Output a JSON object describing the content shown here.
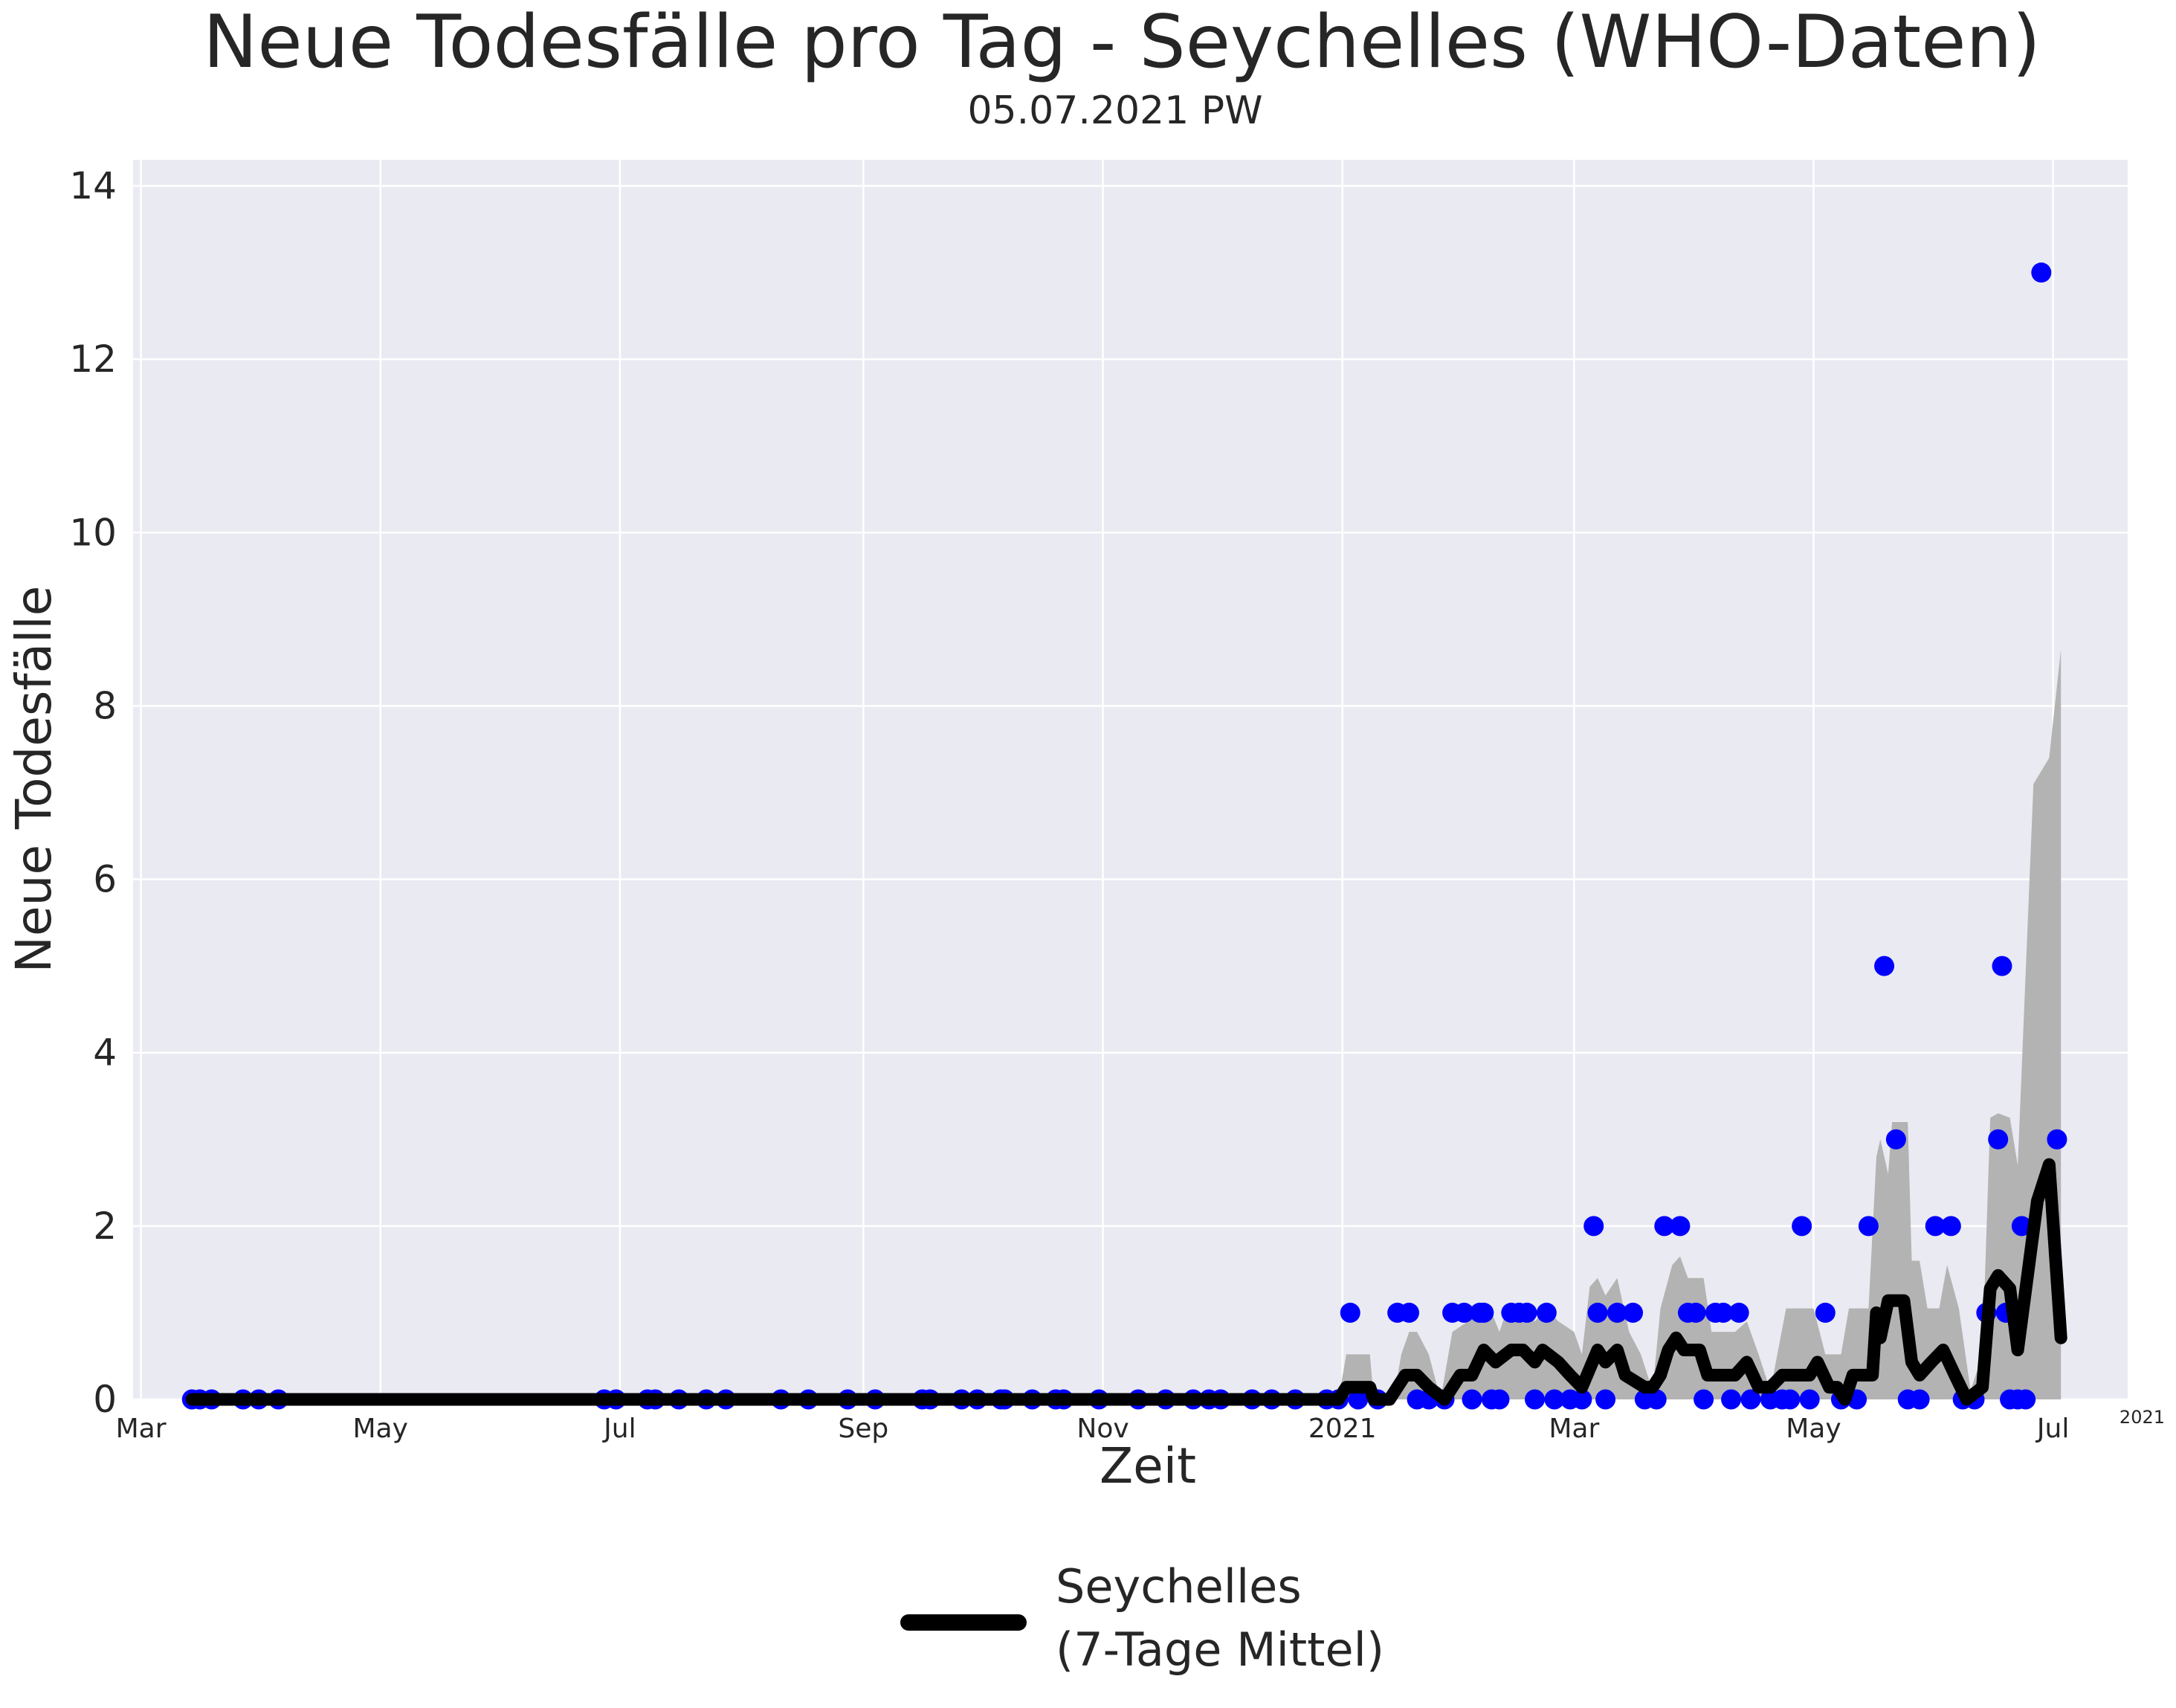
{
  "chart_data": {
    "type": "line",
    "title": "Neue Todesfälle pro Tag - Seychelles (WHO-Daten)",
    "subtitle": "05.07.2021 PW",
    "xlabel": "Zeit",
    "ylabel": "Neue Todesfälle",
    "ylim": [
      0,
      14.3
    ],
    "xlim": [
      "2020-02-28",
      "2021-07-20"
    ],
    "y_ticks": [
      0,
      2,
      4,
      6,
      8,
      10,
      12,
      14
    ],
    "x_ticks": [
      {
        "date": "2020-03-01",
        "label": "Mar"
      },
      {
        "date": "2020-05-01",
        "label": "May"
      },
      {
        "date": "2020-07-01",
        "label": "Jul"
      },
      {
        "date": "2020-09-01",
        "label": "Sep"
      },
      {
        "date": "2020-11-01",
        "label": "Nov"
      },
      {
        "date": "2021-01-01",
        "label": "2021"
      },
      {
        "date": "2021-03-01",
        "label": "Mar"
      },
      {
        "date": "2021-05-01",
        "label": "May"
      },
      {
        "date": "2021-07-01",
        "label": "Jul"
      }
    ],
    "x_offset_label": "2021",
    "grid": true,
    "legend_position": "bottom-center",
    "colors": {
      "background": "#eaeaf2",
      "grid": "#ffffff",
      "points": "#0000ff",
      "line": "#000000",
      "band": "#b3b3b3"
    },
    "series": [
      {
        "name": "Seychelles (7-Tage Mittel)",
        "legend_line1": "Seychelles",
        "legend_line2": "(7-Tage Mittel)",
        "role": "line",
        "points": [
          [
            "2020-03-14",
            0
          ],
          [
            "2020-12-31",
            0
          ],
          [
            "2021-01-02",
            0.14
          ],
          [
            "2021-01-08",
            0.14
          ],
          [
            "2021-01-09",
            0
          ],
          [
            "2021-01-13",
            0
          ],
          [
            "2021-01-15",
            0.14
          ],
          [
            "2021-01-17",
            0.28
          ],
          [
            "2021-01-20",
            0.28
          ],
          [
            "2021-01-23",
            0.14
          ],
          [
            "2021-01-27",
            0
          ],
          [
            "2021-01-31",
            0.28
          ],
          [
            "2021-02-03",
            0.28
          ],
          [
            "2021-02-06",
            0.57
          ],
          [
            "2021-02-09",
            0.43
          ],
          [
            "2021-02-13",
            0.57
          ],
          [
            "2021-02-16",
            0.57
          ],
          [
            "2021-02-19",
            0.43
          ],
          [
            "2021-02-21",
            0.57
          ],
          [
            "2021-02-25",
            0.43
          ],
          [
            "2021-02-28",
            0.28
          ],
          [
            "2021-03-03",
            0.14
          ],
          [
            "2021-03-07",
            0.57
          ],
          [
            "2021-03-09",
            0.43
          ],
          [
            "2021-03-12",
            0.57
          ],
          [
            "2021-03-14",
            0.28
          ],
          [
            "2021-03-19",
            0.14
          ],
          [
            "2021-03-21",
            0.14
          ],
          [
            "2021-03-23",
            0.28
          ],
          [
            "2021-03-25",
            0.57
          ],
          [
            "2021-03-27",
            0.71
          ],
          [
            "2021-03-29",
            0.57
          ],
          [
            "2021-04-02",
            0.57
          ],
          [
            "2021-04-04",
            0.28
          ],
          [
            "2021-04-11",
            0.28
          ],
          [
            "2021-04-14",
            0.43
          ],
          [
            "2021-04-17",
            0.14
          ],
          [
            "2021-04-20",
            0.14
          ],
          [
            "2021-04-23",
            0.28
          ],
          [
            "2021-04-30",
            0.28
          ],
          [
            "2021-05-02",
            0.43
          ],
          [
            "2021-05-05",
            0.14
          ],
          [
            "2021-05-07",
            0.14
          ],
          [
            "2021-05-09",
            0
          ],
          [
            "2021-05-11",
            0.28
          ],
          [
            "2021-05-16",
            0.28
          ],
          [
            "2021-05-17",
            1.0
          ],
          [
            "2021-05-18",
            0.71
          ],
          [
            "2021-05-20",
            1.14
          ],
          [
            "2021-05-24",
            1.14
          ],
          [
            "2021-05-26",
            0.43
          ],
          [
            "2021-05-28",
            0.28
          ],
          [
            "2021-05-31",
            0.43
          ],
          [
            "2021-06-03",
            0.57
          ],
          [
            "2021-06-06",
            0.28
          ],
          [
            "2021-06-09",
            0
          ],
          [
            "2021-06-13",
            0.14
          ],
          [
            "2021-06-15",
            1.28
          ],
          [
            "2021-06-17",
            1.43
          ],
          [
            "2021-06-20",
            1.28
          ],
          [
            "2021-06-22",
            0.57
          ],
          [
            "2021-06-27",
            2.29
          ],
          [
            "2021-06-30",
            2.71
          ],
          [
            "2021-07-03",
            0.71
          ]
        ]
      },
      {
        "name": "Neue Todesfälle",
        "role": "scatter",
        "points": [
          [
            "2020-03-14",
            0
          ],
          [
            "2020-03-16",
            0
          ],
          [
            "2020-03-19",
            0
          ],
          [
            "2020-03-27",
            0
          ],
          [
            "2020-03-31",
            0
          ],
          [
            "2020-04-05",
            0
          ],
          [
            "2020-06-27",
            0
          ],
          [
            "2020-06-30",
            0
          ],
          [
            "2020-07-08",
            0
          ],
          [
            "2020-07-10",
            0
          ],
          [
            "2020-07-16",
            0
          ],
          [
            "2020-07-23",
            0
          ],
          [
            "2020-07-28",
            0
          ],
          [
            "2020-08-11",
            0
          ],
          [
            "2020-08-18",
            0
          ],
          [
            "2020-08-28",
            0
          ],
          [
            "2020-09-04",
            0
          ],
          [
            "2020-09-16",
            0
          ],
          [
            "2020-09-18",
            0
          ],
          [
            "2020-09-26",
            0
          ],
          [
            "2020-09-30",
            0
          ],
          [
            "2020-10-06",
            0
          ],
          [
            "2020-10-07",
            0
          ],
          [
            "2020-10-14",
            0
          ],
          [
            "2020-10-20",
            0
          ],
          [
            "2020-10-22",
            0
          ],
          [
            "2020-10-31",
            0
          ],
          [
            "2020-11-10",
            0
          ],
          [
            "2020-11-17",
            0
          ],
          [
            "2020-11-24",
            0
          ],
          [
            "2020-11-28",
            0
          ],
          [
            "2020-12-01",
            0
          ],
          [
            "2020-12-09",
            0
          ],
          [
            "2020-12-14",
            0
          ],
          [
            "2020-12-20",
            0
          ],
          [
            "2020-12-28",
            0
          ],
          [
            "2020-12-31",
            0
          ],
          [
            "2021-01-03",
            1
          ],
          [
            "2021-01-05",
            0
          ],
          [
            "2021-01-10",
            0
          ],
          [
            "2021-01-15",
            1
          ],
          [
            "2021-01-18",
            1
          ],
          [
            "2021-01-20",
            0
          ],
          [
            "2021-01-23",
            0
          ],
          [
            "2021-01-27",
            0
          ],
          [
            "2021-01-29",
            1
          ],
          [
            "2021-02-01",
            1
          ],
          [
            "2021-02-03",
            0
          ],
          [
            "2021-02-05",
            1
          ],
          [
            "2021-02-06",
            1
          ],
          [
            "2021-02-08",
            0
          ],
          [
            "2021-02-10",
            0
          ],
          [
            "2021-02-13",
            1
          ],
          [
            "2021-02-15",
            1
          ],
          [
            "2021-02-17",
            1
          ],
          [
            "2021-02-19",
            0
          ],
          [
            "2021-02-22",
            1
          ],
          [
            "2021-02-24",
            0
          ],
          [
            "2021-02-28",
            0
          ],
          [
            "2021-03-03",
            0
          ],
          [
            "2021-03-06",
            2
          ],
          [
            "2021-03-07",
            1
          ],
          [
            "2021-03-09",
            0
          ],
          [
            "2021-03-12",
            1
          ],
          [
            "2021-03-16",
            1
          ],
          [
            "2021-03-19",
            0
          ],
          [
            "2021-03-22",
            0
          ],
          [
            "2021-03-24",
            2
          ],
          [
            "2021-03-28",
            2
          ],
          [
            "2021-03-30",
            1
          ],
          [
            "2021-04-01",
            1
          ],
          [
            "2021-04-03",
            0
          ],
          [
            "2021-04-06",
            1
          ],
          [
            "2021-04-08",
            1
          ],
          [
            "2021-04-10",
            0
          ],
          [
            "2021-04-12",
            1
          ],
          [
            "2021-04-15",
            0
          ],
          [
            "2021-04-20",
            0
          ],
          [
            "2021-04-23",
            0
          ],
          [
            "2021-04-25",
            0
          ],
          [
            "2021-04-28",
            2
          ],
          [
            "2021-04-30",
            0
          ],
          [
            "2021-05-04",
            1
          ],
          [
            "2021-05-08",
            0
          ],
          [
            "2021-05-12",
            0
          ],
          [
            "2021-05-15",
            2
          ],
          [
            "2021-05-19",
            5
          ],
          [
            "2021-05-22",
            3
          ],
          [
            "2021-05-25",
            0
          ],
          [
            "2021-05-28",
            0
          ],
          [
            "2021-06-01",
            2
          ],
          [
            "2021-06-05",
            2
          ],
          [
            "2021-06-08",
            0
          ],
          [
            "2021-06-11",
            0
          ],
          [
            "2021-06-14",
            1
          ],
          [
            "2021-06-17",
            3
          ],
          [
            "2021-06-18",
            5
          ],
          [
            "2021-06-19",
            1
          ],
          [
            "2021-06-20",
            0
          ],
          [
            "2021-06-22",
            0
          ],
          [
            "2021-06-23",
            2
          ],
          [
            "2021-06-24",
            0
          ],
          [
            "2021-06-28",
            13
          ],
          [
            "2021-07-02",
            3
          ]
        ]
      },
      {
        "name": "Unsicherheitsband",
        "role": "band",
        "upper": [
          [
            "2020-12-31",
            0
          ],
          [
            "2021-01-02",
            0.52
          ],
          [
            "2021-01-08",
            0.52
          ],
          [
            "2021-01-09",
            0
          ],
          [
            "2021-01-14",
            0
          ],
          [
            "2021-01-16",
            0.52
          ],
          [
            "2021-01-18",
            0.78
          ],
          [
            "2021-01-20",
            0.78
          ],
          [
            "2021-01-23",
            0.52
          ],
          [
            "2021-01-26",
            0
          ],
          [
            "2021-01-29",
            0.78
          ],
          [
            "2021-02-02",
            0.9
          ],
          [
            "2021-02-05",
            1.05
          ],
          [
            "2021-02-08",
            1.0
          ],
          [
            "2021-02-10",
            0.78
          ],
          [
            "2021-02-12",
            1.05
          ],
          [
            "2021-02-16",
            1.05
          ],
          [
            "2021-02-19",
            0.9
          ],
          [
            "2021-02-22",
            1.05
          ],
          [
            "2021-02-25",
            0.9
          ],
          [
            "2021-03-01",
            0.78
          ],
          [
            "2021-03-03",
            0.52
          ],
          [
            "2021-03-05",
            1.3
          ],
          [
            "2021-03-07",
            1.4
          ],
          [
            "2021-03-09",
            1.2
          ],
          [
            "2021-03-12",
            1.4
          ],
          [
            "2021-03-15",
            0.78
          ],
          [
            "2021-03-18",
            0.52
          ],
          [
            "2021-03-21",
            0.1
          ],
          [
            "2021-03-23",
            1.05
          ],
          [
            "2021-03-26",
            1.55
          ],
          [
            "2021-03-28",
            1.65
          ],
          [
            "2021-03-30",
            1.4
          ],
          [
            "2021-04-03",
            1.4
          ],
          [
            "2021-04-05",
            0.78
          ],
          [
            "2021-04-11",
            0.78
          ],
          [
            "2021-04-14",
            0.9
          ],
          [
            "2021-04-17",
            0.52
          ],
          [
            "2021-04-20",
            0.1
          ],
          [
            "2021-04-24",
            1.05
          ],
          [
            "2021-04-28",
            1.05
          ],
          [
            "2021-05-01",
            1.05
          ],
          [
            "2021-05-04",
            0.52
          ],
          [
            "2021-05-08",
            0.52
          ],
          [
            "2021-05-10",
            1.05
          ],
          [
            "2021-05-15",
            1.05
          ],
          [
            "2021-05-17",
            2.8
          ],
          [
            "2021-05-18",
            3.0
          ],
          [
            "2021-05-20",
            2.6
          ],
          [
            "2021-05-21",
            3.2
          ],
          [
            "2021-05-25",
            3.2
          ],
          [
            "2021-05-26",
            1.6
          ],
          [
            "2021-05-28",
            1.6
          ],
          [
            "2021-05-30",
            1.05
          ],
          [
            "2021-06-02",
            1.05
          ],
          [
            "2021-06-04",
            1.55
          ],
          [
            "2021-06-07",
            1.05
          ],
          [
            "2021-06-10",
            0.1
          ],
          [
            "2021-06-13",
            0.52
          ],
          [
            "2021-06-15",
            3.25
          ],
          [
            "2021-06-17",
            3.3
          ],
          [
            "2021-06-20",
            3.25
          ],
          [
            "2021-06-22",
            2.7
          ],
          [
            "2021-06-26",
            7.1
          ],
          [
            "2021-06-30",
            7.4
          ],
          [
            "2021-07-03",
            8.65
          ]
        ],
        "lower": [
          [
            "2020-12-31",
            0
          ],
          [
            "2021-07-03",
            0
          ]
        ]
      }
    ]
  }
}
